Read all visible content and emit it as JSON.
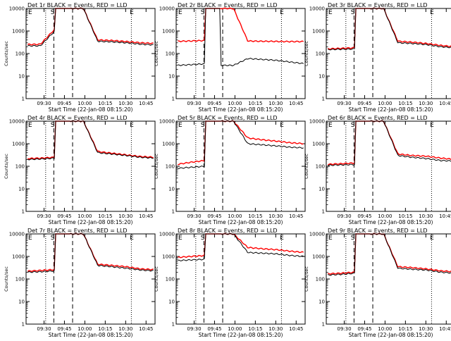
{
  "chart_data": {
    "type": "line",
    "scale": "log",
    "ylim": [
      1,
      10000
    ],
    "ylabel": "Counts/sec",
    "xlabel": "Start Time (22-Jan-08 08:15:20)",
    "xticks": [
      "09:30",
      "09:45",
      "10:00",
      "10:15",
      "10:30",
      "10:45"
    ],
    "yticks": [
      "1",
      "10",
      "100",
      "1000",
      "10000"
    ],
    "colors": {
      "events": "#000000",
      "lld": "#ff0000"
    },
    "markers": {
      "start": "S",
      "end": "E"
    },
    "panels": [
      {
        "title": "Det 1r BLACK = Events, RED = LLD",
        "events_levels": [
          220,
          220,
          1000,
          10000,
          10000,
          350,
          330,
          300,
          260,
          240
        ],
        "lld_levels": [
          250,
          260,
          1200,
          10000,
          10000,
          400,
          380,
          340,
          300,
          280
        ]
      },
      {
        "title": "Det 2r BLACK = Events, RED = LLD",
        "events_levels": [
          30,
          32,
          35,
          30,
          30,
          60,
          55,
          50,
          42,
          35
        ],
        "lld_levels": [
          350,
          360,
          380,
          10000,
          10000,
          360,
          350,
          345,
          340,
          340
        ]
      },
      {
        "title": "Det 3r BLACK = Events, RED = LLD",
        "events_levels": [
          150,
          155,
          160,
          10000,
          10000,
          300,
          280,
          250,
          200,
          180
        ],
        "lld_levels": [
          160,
          170,
          180,
          10000,
          10000,
          350,
          320,
          280,
          230,
          200
        ]
      },
      {
        "title": "Det 4r BLACK = Events, RED = LLD",
        "events_levels": [
          200,
          210,
          230,
          10000,
          10000,
          400,
          350,
          300,
          250,
          230
        ],
        "lld_levels": [
          220,
          230,
          250,
          10000,
          10000,
          450,
          380,
          320,
          270,
          250
        ]
      },
      {
        "title": "Det 5r BLACK = Events, RED = LLD",
        "events_levels": [
          80,
          90,
          100,
          10000,
          10000,
          1000,
          900,
          800,
          700,
          650
        ],
        "lld_levels": [
          120,
          150,
          180,
          10000,
          10000,
          1800,
          1500,
          1300,
          1100,
          1000
        ]
      },
      {
        "title": "Det 6r BLACK = Events, RED = LLD",
        "events_levels": [
          110,
          115,
          120,
          10000,
          10000,
          300,
          250,
          220,
          180,
          170
        ],
        "lld_levels": [
          120,
          130,
          140,
          10000,
          10000,
          350,
          300,
          280,
          230,
          200
        ]
      },
      {
        "title": "Det 7r BLACK = Events, RED = LLD",
        "events_levels": [
          200,
          210,
          230,
          10000,
          10000,
          400,
          350,
          300,
          250,
          230
        ],
        "lld_levels": [
          220,
          240,
          260,
          10000,
          10000,
          450,
          400,
          350,
          280,
          260
        ]
      },
      {
        "title": "Det 8r BLACK = Events, RED = LLD",
        "events_levels": [
          650,
          700,
          750,
          10000,
          10000,
          1500,
          1400,
          1300,
          1100,
          1000
        ],
        "lld_levels": [
          900,
          1000,
          1100,
          10000,
          10000,
          2500,
          2200,
          2000,
          1700,
          1500
        ]
      },
      {
        "title": "Det 9r BLACK = Events, RED = LLD",
        "events_levels": [
          150,
          160,
          180,
          10000,
          10000,
          300,
          270,
          250,
          200,
          180
        ],
        "lld_levels": [
          170,
          180,
          200,
          10000,
          10000,
          350,
          320,
          280,
          230,
          210
        ]
      }
    ]
  }
}
